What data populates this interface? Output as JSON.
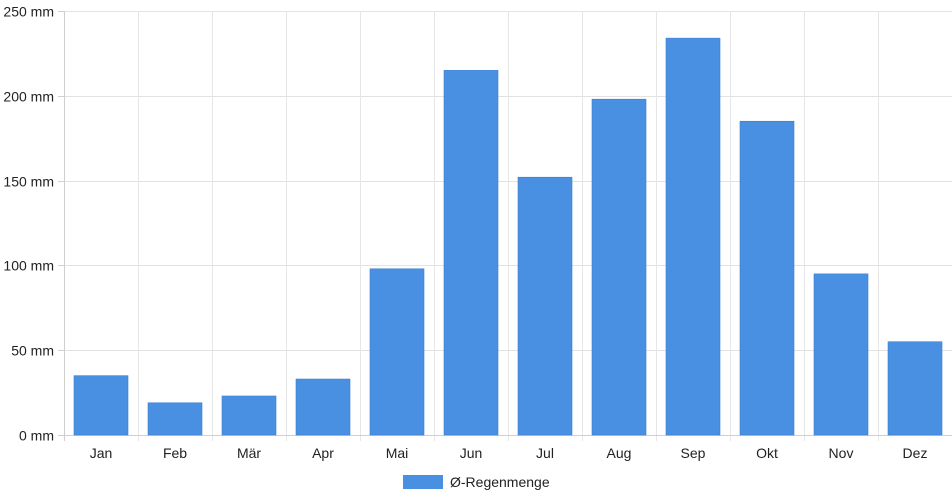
{
  "chart_data": {
    "type": "bar",
    "categories": [
      "Jan",
      "Feb",
      "Mär",
      "Apr",
      "Mai",
      "Jun",
      "Jul",
      "Aug",
      "Sep",
      "Okt",
      "Nov",
      "Dez"
    ],
    "series": [
      {
        "name": "Ø-Regenmenge",
        "values": [
          35,
          19,
          23,
          33,
          98,
          215,
          152,
          198,
          234,
          185,
          95,
          55
        ],
        "color": "#4A90E2"
      }
    ],
    "ylim": [
      0,
      250
    ],
    "yticks": [
      0,
      50,
      100,
      150,
      200,
      250
    ],
    "ytick_labels": [
      "0 mm",
      "50 mm",
      "100 mm",
      "150 mm",
      "200 mm",
      "250 mm"
    ],
    "grid": true,
    "legend_position": "bottom-center"
  }
}
